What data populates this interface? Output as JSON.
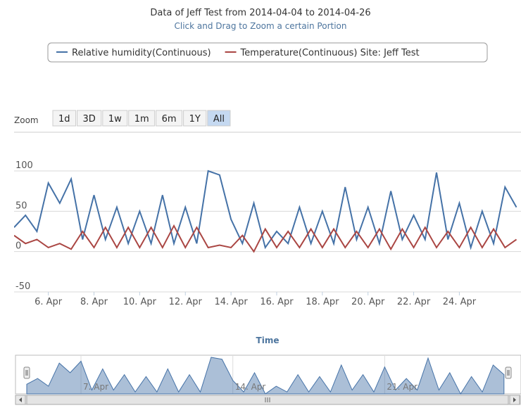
{
  "chart_data": {
    "type": "line",
    "title": "Data of Jeff Test from 2014-04-04 to 2014-04-26",
    "subtitle": "Click and Drag to Zoom a certain Portion",
    "x_label": "Time",
    "range_selector": {
      "label": "Zoom",
      "buttons": [
        "1d",
        "3D",
        "1w",
        "1m",
        "6m",
        "1Y",
        "All"
      ],
      "selected": "All"
    },
    "x": [
      4.5,
      5,
      5.5,
      6,
      6.5,
      7,
      7.5,
      8,
      8.5,
      9,
      9.5,
      10,
      10.5,
      11,
      11.5,
      12,
      12.5,
      13,
      13.5,
      14,
      14.5,
      15,
      15.5,
      16,
      16.5,
      17,
      17.5,
      18,
      18.5,
      19,
      19.5,
      20,
      20.5,
      21,
      21.5,
      22,
      22.5,
      23,
      23.5,
      24,
      24.5,
      25,
      25.5,
      26,
      26.5
    ],
    "xlim": [
      4.5,
      26.7
    ],
    "xticks": [
      {
        "value": 6,
        "label": "6. Apr"
      },
      {
        "value": 8,
        "label": "8. Apr"
      },
      {
        "value": 10,
        "label": "10. Apr"
      },
      {
        "value": 12,
        "label": "12. Apr"
      },
      {
        "value": 14,
        "label": "14. Apr"
      },
      {
        "value": 16,
        "label": "16. Apr"
      },
      {
        "value": 18,
        "label": "18. Apr"
      },
      {
        "value": 20,
        "label": "20. Apr"
      },
      {
        "value": 22,
        "label": "22. Apr"
      },
      {
        "value": 24,
        "label": "24. Apr"
      }
    ],
    "ylim": [
      -50,
      100
    ],
    "yticks": [
      -50,
      0,
      50,
      100
    ],
    "grid": true,
    "series": [
      {
        "name": "Relative humidity(Continuous)",
        "color": "#4572a7",
        "values": [
          30,
          45,
          25,
          85,
          60,
          90,
          15,
          70,
          15,
          55,
          10,
          50,
          10,
          70,
          10,
          55,
          10,
          100,
          95,
          40,
          10,
          60,
          5,
          25,
          10,
          55,
          10,
          50,
          10,
          80,
          15,
          55,
          10,
          75,
          15,
          45,
          15,
          98,
          15,
          60,
          5,
          50,
          10,
          80,
          55
        ]
      },
      {
        "name": "Temperature(Continuous) Site: Jeff Test",
        "color": "#aa4643",
        "values": [
          20,
          10,
          15,
          5,
          10,
          3,
          25,
          5,
          30,
          5,
          30,
          5,
          30,
          5,
          32,
          5,
          30,
          5,
          8,
          5,
          20,
          0,
          28,
          5,
          25,
          5,
          28,
          5,
          28,
          5,
          25,
          5,
          28,
          3,
          28,
          5,
          30,
          5,
          25,
          5,
          30,
          5,
          28,
          5,
          15
        ]
      }
    ],
    "navigator": {
      "xticks": [
        {
          "value": 7,
          "label": "7. Apr"
        },
        {
          "value": 14,
          "label": "14. Apr"
        },
        {
          "value": 21,
          "label": "21. Apr"
        }
      ]
    }
  }
}
